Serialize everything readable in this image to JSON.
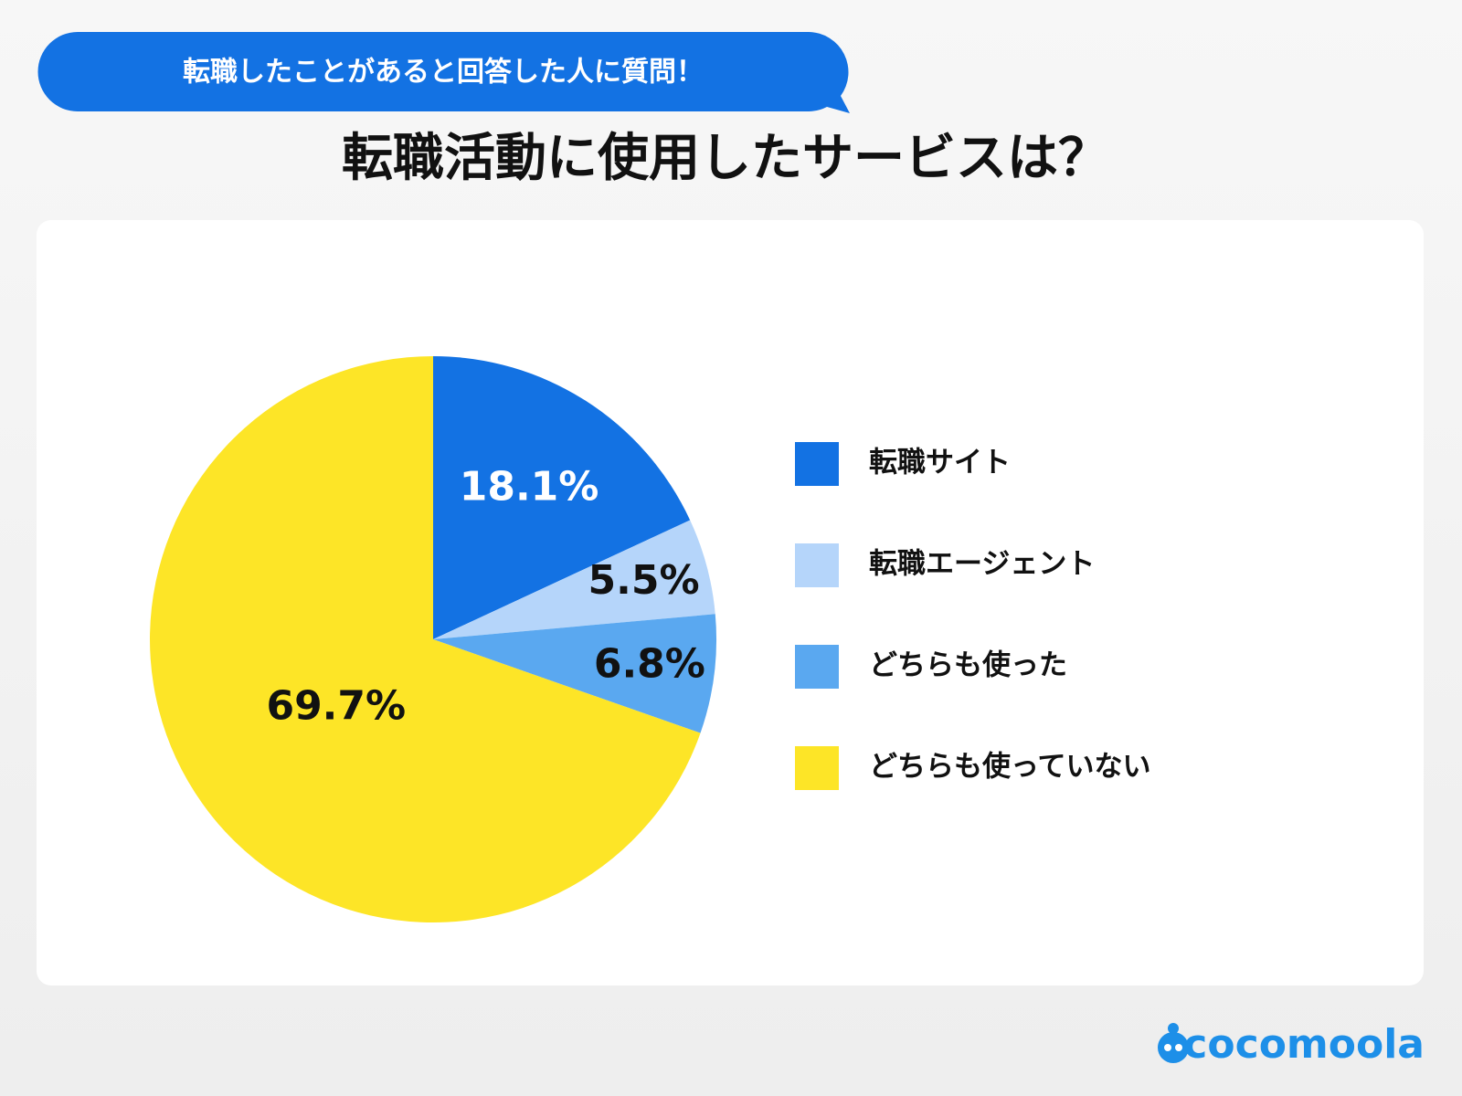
{
  "chart_data": {
    "type": "pie",
    "subtitle": "転職したことがあると回答した人に質問！",
    "title": "転職活動に使用したサービスは？",
    "categories": [
      "転職サイト",
      "転職エージェント",
      "どちらも使った",
      "どちらも使っていない"
    ],
    "values": [
      18.1,
      5.5,
      6.8,
      69.7
    ],
    "value_labels": [
      "18.1%",
      "5.5%",
      "6.8%",
      "69.7%"
    ],
    "colors": [
      "#1372e3",
      "#b5d5fa",
      "#5aa8f0",
      "#fde527"
    ]
  },
  "footer": {
    "logo": "cocomoola"
  }
}
